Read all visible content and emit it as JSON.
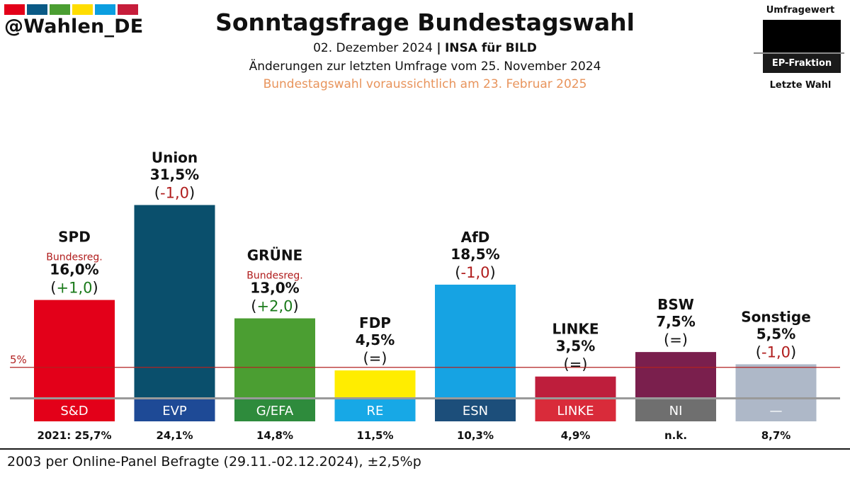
{
  "brand": {
    "handle": "@Wahlen_DE",
    "stripe_colors": [
      "#e30019",
      "#0a5a86",
      "#4b9e32",
      "#ffdd00",
      "#0b9ee0",
      "#c61d3b"
    ]
  },
  "header": {
    "title": "Sonntagsfrage Bundestagswahl",
    "date": "02. Dezember 2024",
    "separator": "|",
    "source": "INSA für BILD",
    "changes_note": "Änderungen zur letzten Umfrage vom 25. November 2024",
    "election_note": "Bundestagswahl voraussichtlich am 23. Februar 2025",
    "election_note_color": "#e8945c"
  },
  "legend": {
    "top_label": "Umfragewert",
    "fraction_label": "EP-Fraktion",
    "bottom_label": "Letzte Wahl"
  },
  "chart_data": {
    "type": "bar",
    "threshold": {
      "label": "5%",
      "value": 5,
      "color": "#b22222"
    },
    "categories": [
      "SPD",
      "Union",
      "GRÜNE",
      "FDP",
      "AfD",
      "LINKE",
      "BSW",
      "Sonstige"
    ],
    "values": [
      16.0,
      31.5,
      13.0,
      4.5,
      18.5,
      3.5,
      7.5,
      5.5
    ],
    "bars": [
      {
        "party": "SPD",
        "note": "Bundesreg.",
        "value_label": "16,0%",
        "change": "+1,0",
        "change_dir": "up",
        "bar_color": "#e30019",
        "fraction": "S&D",
        "fraction_color": "#e30019",
        "last_election": "2021: 25,7%"
      },
      {
        "party": "Union",
        "note": "",
        "value_label": "31,5%",
        "change": "-1,0",
        "change_dir": "down",
        "bar_color": "#0a4f6c",
        "fraction": "EVP",
        "fraction_color": "#1e4a96",
        "last_election": "24,1%"
      },
      {
        "party": "GRÜNE",
        "note": "Bundesreg.",
        "value_label": "13,0%",
        "change": "+2,0",
        "change_dir": "up",
        "bar_color": "#4b9e32",
        "fraction": "G/EFA",
        "fraction_color": "#2e8b3c",
        "last_election": "14,8%"
      },
      {
        "party": "FDP",
        "note": "",
        "value_label": "4,5%",
        "change": "=",
        "change_dir": "same",
        "bar_color": "#ffed00",
        "fraction": "RE",
        "fraction_color": "#17a8e6",
        "last_election": "11,5%"
      },
      {
        "party": "AfD",
        "note": "",
        "value_label": "18,5%",
        "change": "-1,0",
        "change_dir": "down",
        "bar_color": "#16a3e3",
        "fraction": "ESN",
        "fraction_color": "#1c4e7a",
        "last_election": "10,3%"
      },
      {
        "party": "LINKE",
        "note": "",
        "value_label": "3,5%",
        "change": "=",
        "change_dir": "same",
        "bar_color": "#be1e3c",
        "fraction": "LINKE",
        "fraction_color": "#d92b3a",
        "last_election": "4,9%"
      },
      {
        "party": "BSW",
        "note": "",
        "value_label": "7,5%",
        "change": "=",
        "change_dir": "same",
        "bar_color": "#7a1f4d",
        "fraction": "NI",
        "fraction_color": "#6f6f6f",
        "last_election": "n.k."
      },
      {
        "party": "Sonstige",
        "note": "",
        "value_label": "5,5%",
        "change": "-1,0",
        "change_dir": "down",
        "bar_color": "#aeb8c8",
        "fraction": "—",
        "fraction_color": "#aeb8c8",
        "last_election": "8,7%"
      }
    ],
    "colors": {
      "up": "#1a7a1a",
      "down": "#b01c1c",
      "note": "#b01c1c"
    }
  },
  "footer": {
    "text": "2003 per Online-Panel Befragte (29.11.-02.12.2024), ±2,5%p"
  }
}
